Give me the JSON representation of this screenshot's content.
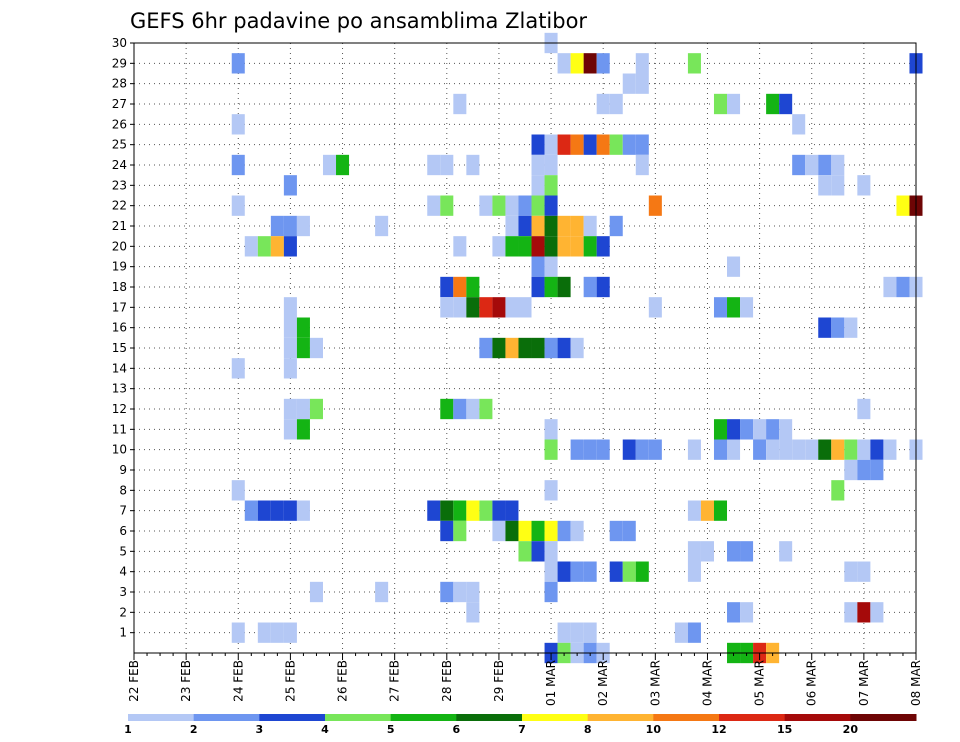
{
  "chart_data": {
    "type": "heatmap",
    "title": "GEFS 6hr padavine po ansamblima Zlatibor",
    "xlabel": "",
    "ylabel": "",
    "x_ticks": [
      "22 FEB",
      "23 FEB",
      "24 FEB",
      "25 FEB",
      "26 FEB",
      "27 FEB",
      "28 FEB",
      "29 FEB",
      "01 MAR",
      "02 MAR",
      "03 MAR",
      "04 MAR",
      "05 MAR",
      "06 MAR",
      "07 MAR",
      "08 MAR"
    ],
    "xlim": [
      0,
      15
    ],
    "ylim": [
      0,
      30
    ],
    "y_ticks": [
      1,
      2,
      3,
      4,
      5,
      6,
      7,
      8,
      9,
      10,
      11,
      12,
      13,
      14,
      15,
      16,
      17,
      18,
      19,
      20,
      21,
      22,
      23,
      24,
      25,
      26,
      27,
      28,
      29,
      30
    ],
    "grid": true,
    "colorbar": {
      "colors": [
        "#b4c8f5",
        "#6e96f0",
        "#1e46d2",
        "#78e65a",
        "#14b414",
        "#0a6e0a",
        "#ffff14",
        "#ffb432",
        "#f57814",
        "#dc2814",
        "#a50a0a",
        "#6e0505"
      ],
      "labels": [
        "1",
        "2",
        "3",
        "4",
        "5",
        "6",
        "7",
        "8",
        "10",
        "12",
        "15",
        "20"
      ],
      "label_positions": [
        0,
        1,
        2,
        3,
        4,
        5,
        6,
        7,
        8,
        9,
        10,
        11
      ]
    },
    "cells": [
      [
        8.0,
        30,
        1
      ],
      [
        2.0,
        29,
        2
      ],
      [
        8.25,
        29,
        1
      ],
      [
        8.5,
        29,
        7
      ],
      [
        8.75,
        29,
        12
      ],
      [
        9.0,
        29,
        2
      ],
      [
        9.75,
        29,
        1
      ],
      [
        10.75,
        29,
        4
      ],
      [
        15.0,
        29,
        3
      ],
      [
        9.5,
        28,
        1
      ],
      [
        9.75,
        28,
        1
      ],
      [
        6.25,
        27,
        1
      ],
      [
        9.0,
        27,
        1
      ],
      [
        9.25,
        27,
        1
      ],
      [
        11.25,
        27,
        4
      ],
      [
        11.5,
        27,
        1
      ],
      [
        12.25,
        27,
        5
      ],
      [
        12.5,
        27,
        3
      ],
      [
        2.0,
        26,
        1
      ],
      [
        12.75,
        26,
        1
      ],
      [
        7.75,
        25,
        3
      ],
      [
        8.0,
        25,
        1
      ],
      [
        8.25,
        25,
        10
      ],
      [
        8.5,
        25,
        9
      ],
      [
        8.75,
        25,
        3
      ],
      [
        9.0,
        25,
        9
      ],
      [
        9.25,
        25,
        4
      ],
      [
        9.5,
        25,
        2
      ],
      [
        9.75,
        25,
        2
      ],
      [
        2.0,
        24,
        2
      ],
      [
        3.75,
        24,
        1
      ],
      [
        4.0,
        24,
        5
      ],
      [
        5.75,
        24,
        1
      ],
      [
        6.0,
        24,
        1
      ],
      [
        6.5,
        24,
        1
      ],
      [
        7.75,
        24,
        1
      ],
      [
        8.0,
        24,
        1
      ],
      [
        9.75,
        24,
        1
      ],
      [
        12.75,
        24,
        2
      ],
      [
        13.0,
        24,
        1
      ],
      [
        13.25,
        24,
        2
      ],
      [
        13.5,
        24,
        1
      ],
      [
        3.0,
        23,
        2
      ],
      [
        7.75,
        23,
        1
      ],
      [
        8.0,
        23,
        4
      ],
      [
        13.25,
        23,
        1
      ],
      [
        13.5,
        23,
        1
      ],
      [
        14.0,
        23,
        1
      ],
      [
        2.0,
        22,
        1
      ],
      [
        5.75,
        22,
        1
      ],
      [
        6.0,
        22,
        4
      ],
      [
        6.75,
        22,
        1
      ],
      [
        7.0,
        22,
        4
      ],
      [
        7.25,
        22,
        1
      ],
      [
        7.5,
        22,
        2
      ],
      [
        7.75,
        22,
        4
      ],
      [
        8.0,
        22,
        3
      ],
      [
        10.0,
        22,
        9
      ],
      [
        14.75,
        22,
        7
      ],
      [
        15.0,
        22,
        12
      ],
      [
        2.75,
        21,
        2
      ],
      [
        3.0,
        21,
        2
      ],
      [
        3.25,
        21,
        1
      ],
      [
        4.75,
        21,
        1
      ],
      [
        7.25,
        21,
        1
      ],
      [
        7.5,
        21,
        3
      ],
      [
        7.75,
        21,
        8
      ],
      [
        8.0,
        21,
        6
      ],
      [
        8.25,
        21,
        8
      ],
      [
        8.5,
        21,
        8
      ],
      [
        8.75,
        21,
        1
      ],
      [
        9.25,
        21,
        2
      ],
      [
        2.25,
        20,
        1
      ],
      [
        2.5,
        20,
        4
      ],
      [
        2.75,
        20,
        8
      ],
      [
        3.0,
        20,
        3
      ],
      [
        6.25,
        20,
        1
      ],
      [
        7.0,
        20,
        1
      ],
      [
        7.25,
        20,
        5
      ],
      [
        7.5,
        20,
        5
      ],
      [
        7.75,
        20,
        11
      ],
      [
        8.0,
        20,
        6
      ],
      [
        8.25,
        20,
        8
      ],
      [
        8.5,
        20,
        8
      ],
      [
        8.75,
        20,
        5
      ],
      [
        9.0,
        20,
        3
      ],
      [
        7.75,
        19,
        2
      ],
      [
        8.0,
        19,
        1
      ],
      [
        11.5,
        19,
        1
      ],
      [
        6.0,
        18,
        3
      ],
      [
        6.25,
        18,
        9
      ],
      [
        6.5,
        18,
        5
      ],
      [
        7.75,
        18,
        3
      ],
      [
        8.0,
        18,
        5
      ],
      [
        8.25,
        18,
        6
      ],
      [
        8.75,
        18,
        2
      ],
      [
        9.0,
        18,
        3
      ],
      [
        14.5,
        18,
        1
      ],
      [
        14.75,
        18,
        2
      ],
      [
        15.0,
        18,
        1
      ],
      [
        3.0,
        17,
        1
      ],
      [
        6.0,
        17,
        1
      ],
      [
        6.25,
        17,
        1
      ],
      [
        6.5,
        17,
        6
      ],
      [
        6.75,
        17,
        10
      ],
      [
        7.0,
        17,
        11
      ],
      [
        7.25,
        17,
        1
      ],
      [
        7.5,
        17,
        1
      ],
      [
        10.0,
        17,
        1
      ],
      [
        11.25,
        17,
        2
      ],
      [
        11.5,
        17,
        5
      ],
      [
        11.75,
        17,
        1
      ],
      [
        3.0,
        16,
        1
      ],
      [
        3.25,
        16,
        5
      ],
      [
        13.25,
        16,
        3
      ],
      [
        13.5,
        16,
        2
      ],
      [
        13.75,
        16,
        1
      ],
      [
        3.0,
        15,
        1
      ],
      [
        3.25,
        15,
        5
      ],
      [
        3.5,
        15,
        1
      ],
      [
        6.75,
        15,
        2
      ],
      [
        7.0,
        15,
        6
      ],
      [
        7.25,
        15,
        8
      ],
      [
        7.5,
        15,
        6
      ],
      [
        7.75,
        15,
        6
      ],
      [
        8.0,
        15,
        2
      ],
      [
        8.25,
        15,
        3
      ],
      [
        8.5,
        15,
        1
      ],
      [
        2.0,
        14,
        1
      ],
      [
        3.0,
        14,
        1
      ],
      [
        3.0,
        12,
        1
      ],
      [
        3.25,
        12,
        1
      ],
      [
        3.5,
        12,
        4
      ],
      [
        6.0,
        12,
        5
      ],
      [
        6.25,
        12,
        2
      ],
      [
        6.5,
        12,
        1
      ],
      [
        6.75,
        12,
        4
      ],
      [
        14.0,
        12,
        1
      ],
      [
        3.0,
        11,
        1
      ],
      [
        3.25,
        11,
        5
      ],
      [
        8.0,
        11,
        1
      ],
      [
        11.25,
        11,
        5
      ],
      [
        11.5,
        11,
        3
      ],
      [
        11.75,
        11,
        2
      ],
      [
        12.0,
        11,
        1
      ],
      [
        12.25,
        11,
        2
      ],
      [
        12.5,
        11,
        1
      ],
      [
        8.0,
        10,
        4
      ],
      [
        8.5,
        10,
        2
      ],
      [
        8.75,
        10,
        2
      ],
      [
        9.0,
        10,
        2
      ],
      [
        9.5,
        10,
        3
      ],
      [
        9.75,
        10,
        2
      ],
      [
        10.0,
        10,
        2
      ],
      [
        10.75,
        10,
        1
      ],
      [
        11.25,
        10,
        2
      ],
      [
        11.5,
        10,
        1
      ],
      [
        12.0,
        10,
        2
      ],
      [
        12.25,
        10,
        1
      ],
      [
        12.5,
        10,
        1
      ],
      [
        12.75,
        10,
        1
      ],
      [
        13.0,
        10,
        1
      ],
      [
        13.25,
        10,
        6
      ],
      [
        13.5,
        10,
        8
      ],
      [
        13.75,
        10,
        4
      ],
      [
        14.0,
        10,
        1
      ],
      [
        14.25,
        10,
        3
      ],
      [
        14.5,
        10,
        1
      ],
      [
        15.0,
        10,
        1
      ],
      [
        13.75,
        9,
        1
      ],
      [
        14.0,
        9,
        2
      ],
      [
        14.25,
        9,
        2
      ],
      [
        2.0,
        8,
        1
      ],
      [
        8.0,
        8,
        1
      ],
      [
        13.5,
        8,
        4
      ],
      [
        2.25,
        7,
        2
      ],
      [
        2.5,
        7,
        3
      ],
      [
        2.75,
        7,
        3
      ],
      [
        3.0,
        7,
        3
      ],
      [
        3.25,
        7,
        1
      ],
      [
        5.75,
        7,
        3
      ],
      [
        6.0,
        7,
        6
      ],
      [
        6.25,
        7,
        5
      ],
      [
        6.5,
        7,
        7
      ],
      [
        6.75,
        7,
        4
      ],
      [
        7.0,
        7,
        3
      ],
      [
        7.25,
        7,
        3
      ],
      [
        10.75,
        7,
        1
      ],
      [
        11.0,
        7,
        8
      ],
      [
        11.25,
        7,
        5
      ],
      [
        6.0,
        6,
        3
      ],
      [
        6.25,
        6,
        4
      ],
      [
        7.0,
        6,
        1
      ],
      [
        7.25,
        6,
        6
      ],
      [
        7.5,
        6,
        7
      ],
      [
        7.75,
        6,
        5
      ],
      [
        8.0,
        6,
        7
      ],
      [
        8.25,
        6,
        2
      ],
      [
        8.5,
        6,
        1
      ],
      [
        9.25,
        6,
        2
      ],
      [
        9.5,
        6,
        2
      ],
      [
        7.5,
        5,
        4
      ],
      [
        7.75,
        5,
        3
      ],
      [
        8.0,
        5,
        1
      ],
      [
        10.75,
        5,
        1
      ],
      [
        11.0,
        5,
        1
      ],
      [
        11.5,
        5,
        2
      ],
      [
        11.75,
        5,
        2
      ],
      [
        12.5,
        5,
        1
      ],
      [
        8.0,
        4,
        1
      ],
      [
        8.25,
        4,
        3
      ],
      [
        8.5,
        4,
        2
      ],
      [
        8.75,
        4,
        2
      ],
      [
        9.25,
        4,
        3
      ],
      [
        9.5,
        4,
        4
      ],
      [
        9.75,
        4,
        5
      ],
      [
        10.75,
        4,
        1
      ],
      [
        13.75,
        4,
        1
      ],
      [
        14.0,
        4,
        1
      ],
      [
        3.5,
        3,
        1
      ],
      [
        4.75,
        3,
        1
      ],
      [
        6.0,
        3,
        2
      ],
      [
        6.25,
        3,
        1
      ],
      [
        6.5,
        3,
        1
      ],
      [
        8.0,
        3,
        2
      ],
      [
        6.5,
        2,
        1
      ],
      [
        11.5,
        2,
        2
      ],
      [
        11.75,
        2,
        1
      ],
      [
        13.75,
        2,
        1
      ],
      [
        14.0,
        2,
        11
      ],
      [
        14.25,
        2,
        1
      ],
      [
        2.0,
        1,
        1
      ],
      [
        2.5,
        1,
        1
      ],
      [
        2.75,
        1,
        1
      ],
      [
        3.0,
        1,
        1
      ],
      [
        8.25,
        1,
        1
      ],
      [
        8.5,
        1,
        1
      ],
      [
        8.75,
        1,
        1
      ],
      [
        10.5,
        1,
        1
      ],
      [
        10.75,
        1,
        2
      ],
      [
        8.0,
        0,
        3
      ],
      [
        8.25,
        0,
        4
      ],
      [
        8.5,
        0,
        1
      ],
      [
        8.75,
        0,
        2
      ],
      [
        9.0,
        0,
        1
      ],
      [
        11.5,
        0,
        5
      ],
      [
        11.75,
        0,
        5
      ],
      [
        12.0,
        0,
        10
      ],
      [
        12.25,
        0,
        8
      ]
    ]
  }
}
